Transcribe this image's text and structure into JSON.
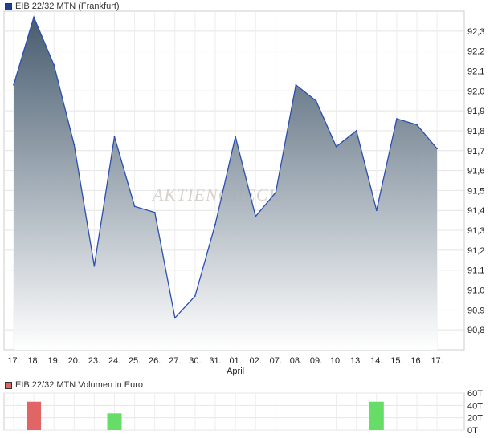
{
  "chart_data": [
    {
      "type": "area",
      "legend": "EIB 22/32 MTN (Frankfurt)",
      "legend_color": "#1f3f8f",
      "categories": [
        "17.",
        "18.",
        "19.",
        "20.",
        "23.",
        "24.",
        "25.",
        "26.",
        "27.",
        "30.",
        "31.",
        "01.",
        "02.",
        "07.",
        "08.",
        "09.",
        "10.",
        "13.",
        "14.",
        "15.",
        "16.",
        "17."
      ],
      "month_label": "April",
      "values": [
        92.03,
        92.37,
        92.13,
        91.73,
        91.12,
        91.77,
        91.42,
        91.39,
        90.86,
        90.97,
        91.33,
        91.77,
        91.37,
        91.49,
        92.03,
        91.95,
        91.72,
        91.8,
        91.4,
        91.86,
        91.83,
        91.71
      ],
      "ylim": [
        90.7,
        92.4
      ],
      "yticks": [
        "90,8",
        "90,9",
        "91,0",
        "91,1",
        "91,2",
        "91,3",
        "91,4",
        "91,5",
        "91,6",
        "91,7",
        "91,8",
        "91,9",
        "92,0",
        "92,1",
        "92,2",
        "92,3"
      ],
      "grid": true,
      "line_color": "#2a4fb0",
      "fill_top_color": "#3e5468",
      "fill_bottom_color": "#ffffff",
      "watermark": "AKTIENCHECK"
    },
    {
      "type": "bar",
      "legend": "EIB 22/32 MTN Volumen in Euro",
      "legend_color": "#e06666",
      "values": [
        0,
        46,
        0,
        0,
        0,
        27,
        0,
        0,
        0,
        0,
        0,
        0,
        0,
        0,
        0,
        0,
        0,
        0,
        46,
        0,
        0,
        0
      ],
      "bar_colors": [
        "",
        "#e06666",
        "",
        "",
        "",
        "#66dd66",
        "",
        "",
        "",
        "",
        "",
        "",
        "",
        "",
        "",
        "",
        "",
        "",
        "#66dd66",
        "",
        "",
        ""
      ],
      "ylim": [
        0,
        60
      ],
      "yticks": [
        "0T",
        "20T",
        "40T",
        "60T"
      ],
      "grid": true
    }
  ]
}
